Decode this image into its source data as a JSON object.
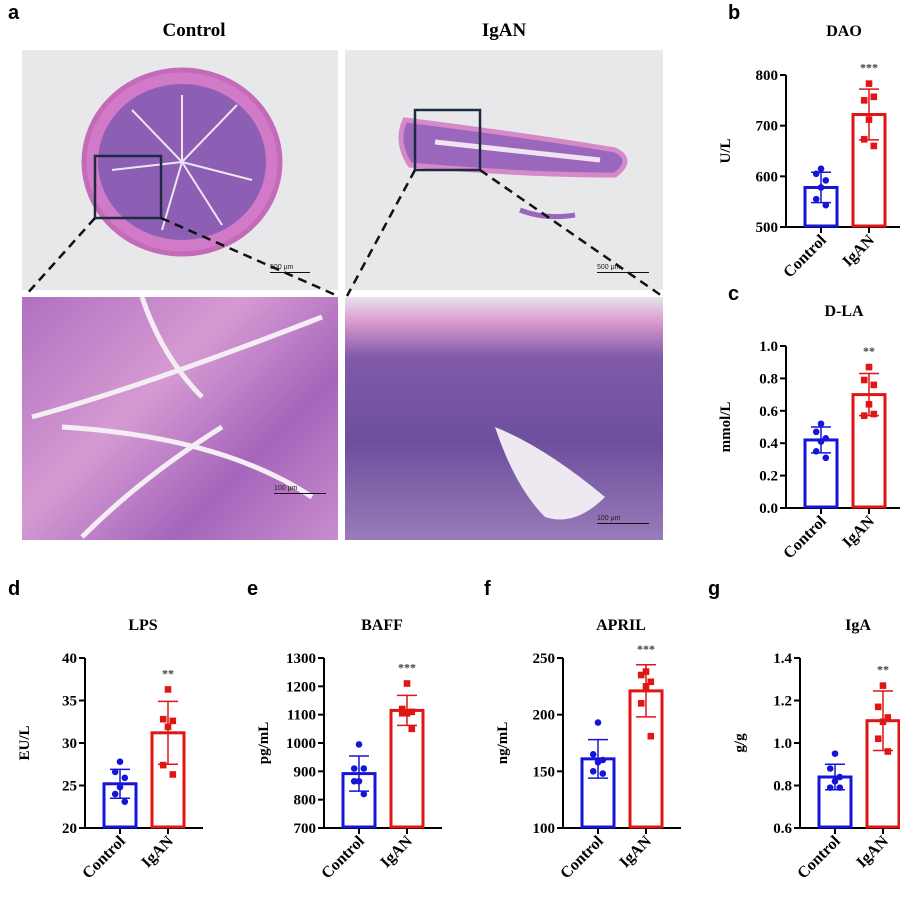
{
  "panel_letters": [
    "a",
    "b",
    "c",
    "d",
    "e",
    "f",
    "g"
  ],
  "histology": {
    "col_titles": [
      "Control",
      "IgAN"
    ],
    "scale_top": "500 μm",
    "scale_bottom": "100 μm"
  },
  "colors": {
    "control": "#1515d6",
    "igan": "#e01515",
    "tissue": "#b05fb0",
    "background": "#e9e9ea"
  },
  "chart_data": [
    {
      "id": "b",
      "type": "bar",
      "title": "DAO",
      "ylabel": "U/L",
      "ylim": [
        500,
        800
      ],
      "yticks": [
        500,
        600,
        700,
        800
      ],
      "categories": [
        "Control",
        "IgAN"
      ],
      "series": [
        {
          "name": "Control",
          "mean": 578,
          "sd": 30,
          "points": [
            615,
            605,
            592,
            578,
            555,
            543
          ]
        },
        {
          "name": "IgAN",
          "mean": 722,
          "sd": 50,
          "points": [
            783,
            750,
            757,
            712,
            673,
            660
          ]
        }
      ],
      "significance": "***"
    },
    {
      "id": "c",
      "type": "bar",
      "title": "D-LA",
      "ylabel": "mmol/L",
      "ylim": [
        0,
        1.0
      ],
      "yticks": [
        "0.0",
        "0.2",
        "0.4",
        "0.6",
        "0.8",
        "1.0"
      ],
      "categories": [
        "Control",
        "IgAN"
      ],
      "series": [
        {
          "name": "Control",
          "mean": 0.42,
          "sd": 0.08,
          "points": [
            0.52,
            0.47,
            0.43,
            0.41,
            0.35,
            0.31
          ]
        },
        {
          "name": "IgAN",
          "mean": 0.7,
          "sd": 0.13,
          "points": [
            0.87,
            0.79,
            0.76,
            0.64,
            0.57,
            0.58
          ]
        }
      ],
      "significance": "**"
    },
    {
      "id": "d",
      "type": "bar",
      "title": "LPS",
      "ylabel": "EU/L",
      "ylim": [
        20,
        40
      ],
      "yticks": [
        20,
        25,
        30,
        35,
        40
      ],
      "categories": [
        "Control",
        "IgAN"
      ],
      "series": [
        {
          "name": "Control",
          "mean": 25.2,
          "sd": 1.7,
          "points": [
            27.8,
            26.6,
            25.9,
            24.8,
            24.0,
            23.1
          ]
        },
        {
          "name": "IgAN",
          "mean": 31.2,
          "sd": 3.7,
          "points": [
            36.3,
            32.8,
            32.6,
            31.9,
            27.4,
            26.3
          ]
        }
      ],
      "significance": "**"
    },
    {
      "id": "e",
      "type": "bar",
      "title": "BAFF",
      "ylabel": "pg/mL",
      "ylim": [
        700,
        1300
      ],
      "yticks": [
        700,
        800,
        900,
        1000,
        1100,
        1200,
        1300
      ],
      "categories": [
        "Control",
        "IgAN"
      ],
      "series": [
        {
          "name": "Control",
          "mean": 892,
          "sd": 62,
          "points": [
            995,
            910,
            910,
            865,
            865,
            820
          ]
        },
        {
          "name": "IgAN",
          "mean": 1115,
          "sd": 53,
          "points": [
            1210,
            1120,
            1110,
            1105,
            1105,
            1050
          ]
        }
      ],
      "significance": "***"
    },
    {
      "id": "f",
      "type": "bar",
      "title": "APRIL",
      "ylabel": "ng/mL",
      "ylim": [
        100,
        250
      ],
      "yticks": [
        100,
        150,
        200,
        250
      ],
      "categories": [
        "Control",
        "IgAN"
      ],
      "series": [
        {
          "name": "Control",
          "mean": 161,
          "sd": 17,
          "points": [
            193,
            165,
            160,
            158,
            150,
            148
          ]
        },
        {
          "name": "IgAN",
          "mean": 221,
          "sd": 23,
          "points": [
            238,
            235,
            229,
            225,
            210,
            181
          ]
        }
      ],
      "significance": "***"
    },
    {
      "id": "g",
      "type": "bar",
      "title": "IgA",
      "ylabel": "g/g",
      "ylim": [
        0.6,
        1.4
      ],
      "yticks": [
        "0.6",
        "0.8",
        "1.0",
        "1.2",
        "1.4"
      ],
      "categories": [
        "Control",
        "IgAN"
      ],
      "series": [
        {
          "name": "Control",
          "mean": 0.84,
          "sd": 0.06,
          "points": [
            0.95,
            0.88,
            0.84,
            0.82,
            0.79,
            0.79
          ]
        },
        {
          "name": "IgAN",
          "mean": 1.105,
          "sd": 0.14,
          "points": [
            1.27,
            1.17,
            1.12,
            1.1,
            1.02,
            0.96
          ]
        }
      ],
      "significance": "**"
    }
  ]
}
